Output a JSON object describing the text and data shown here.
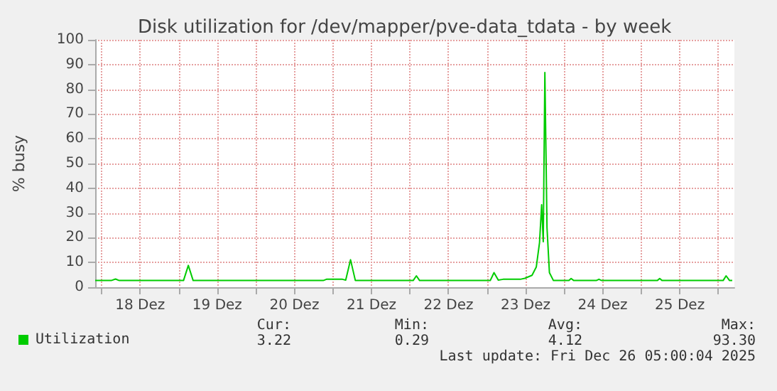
{
  "chart_data": {
    "type": "line",
    "title": "Disk utilization for /dev/mapper/pve-data_tdata - by week",
    "ylabel": "% busy",
    "x": [
      "2025-12-17T22:00",
      "2025-12-18T03:00",
      "2025-12-18T04:20",
      "2025-12-18T05:30",
      "2025-12-19T01:30",
      "2025-12-19T03:00",
      "2025-12-19T04:30",
      "2025-12-20T21:00",
      "2025-12-20T22:00",
      "2025-12-21T03:00",
      "2025-12-21T04:00",
      "2025-12-21T05:30",
      "2025-12-21T07:00",
      "2025-12-22T01:00",
      "2025-12-22T02:00",
      "2025-12-22T03:00",
      "2025-12-23T01:00",
      "2025-12-23T02:10",
      "2025-12-23T03:30",
      "2025-12-23T05:00",
      "2025-12-23T10:20",
      "2025-12-23T11:45",
      "2025-12-23T14:00",
      "2025-12-23T15:20",
      "2025-12-23T16:20",
      "2025-12-23T17:00",
      "2025-12-23T17:30",
      "2025-12-23T18:00",
      "2025-12-23T18:40",
      "2025-12-23T19:25",
      "2025-12-23T20:40",
      "2025-12-24T01:30",
      "2025-12-24T02:10",
      "2025-12-24T03:00",
      "2025-12-24T10:00",
      "2025-12-24T10:50",
      "2025-12-24T11:40",
      "2025-12-25T05:00",
      "2025-12-25T05:45",
      "2025-12-25T06:30",
      "2025-12-26T01:30",
      "2025-12-26T02:25",
      "2025-12-26T03:30",
      "2025-12-26T04:20"
    ],
    "series": [
      {
        "name": "Utilization",
        "color": "#00cc00",
        "values": [
          2.7,
          2.7,
          3.3,
          2.7,
          2.7,
          8.8,
          2.7,
          2.7,
          3.2,
          3.2,
          2.9,
          11.1,
          2.7,
          2.7,
          4.6,
          2.7,
          2.7,
          5.9,
          2.9,
          3.2,
          3.2,
          3.6,
          4.8,
          8.2,
          18,
          33.3,
          18.4,
          86.8,
          24,
          5.9,
          2.7,
          2.7,
          3.5,
          2.7,
          2.7,
          3.2,
          2.7,
          2.7,
          3.5,
          2.7,
          2.7,
          4.6,
          2.7,
          2.7
        ]
      }
    ],
    "xlim": [
      "2025-12-17T22:00",
      "2025-12-26T05:00"
    ],
    "xticks": [
      {
        "value": "2025-12-18T00:00",
        "label": null
      },
      {
        "value": "2025-12-18T12:00",
        "label": "18 Dez"
      },
      {
        "value": "2025-12-19T00:00",
        "label": null
      },
      {
        "value": "2025-12-19T12:00",
        "label": "19 Dez"
      },
      {
        "value": "2025-12-20T00:00",
        "label": null
      },
      {
        "value": "2025-12-20T12:00",
        "label": "20 Dez"
      },
      {
        "value": "2025-12-21T00:00",
        "label": null
      },
      {
        "value": "2025-12-21T12:00",
        "label": "21 Dez"
      },
      {
        "value": "2025-12-22T00:00",
        "label": null
      },
      {
        "value": "2025-12-22T12:00",
        "label": "22 Dez"
      },
      {
        "value": "2025-12-23T00:00",
        "label": null
      },
      {
        "value": "2025-12-23T12:00",
        "label": "23 Dez"
      },
      {
        "value": "2025-12-24T00:00",
        "label": null
      },
      {
        "value": "2025-12-24T12:00",
        "label": "24 Dez"
      },
      {
        "value": "2025-12-25T00:00",
        "label": null
      },
      {
        "value": "2025-12-25T12:00",
        "label": "25 Dez"
      },
      {
        "value": "2025-12-26T00:00",
        "label": null
      }
    ],
    "ylim": [
      0,
      100
    ],
    "yticks": [
      0,
      10,
      20,
      30,
      40,
      50,
      60,
      70,
      80,
      90,
      100
    ],
    "grid": true,
    "legend": "bottom left",
    "marker": "none",
    "line_style": "solid",
    "annotations": [
      "Cur:",
      "Min:",
      "Avg:",
      "Max:",
      "3.22",
      "0.29",
      "4.12",
      "93.30",
      "Last update: Fri Dec 26 05:00:04 2025"
    ]
  }
}
